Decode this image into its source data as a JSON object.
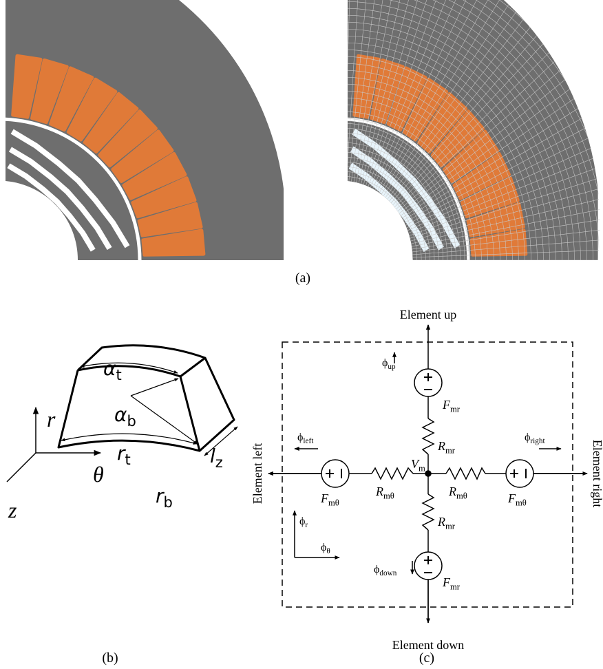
{
  "panel_a": {
    "caption": "(a)"
  },
  "panel_b": {
    "caption": "(b)",
    "alpha_t": {
      "symbol": "α",
      "sub": "t"
    },
    "alpha_b": {
      "symbol": "α",
      "sub": "b"
    },
    "r_t": {
      "symbol": "r",
      "sub": "t"
    },
    "r_b": {
      "symbol": "r",
      "sub": "b"
    },
    "l_z": {
      "symbol": "l",
      "sub": "z"
    },
    "axis_r": "r",
    "axis_theta": "θ",
    "axis_z": "z"
  },
  "panel_c": {
    "caption": "(c)",
    "element_up": "Element up",
    "element_down": "Element down",
    "element_left": "Element left",
    "element_right": "Element right",
    "flux_up": {
      "symbol": "ϕ",
      "sub": "up"
    },
    "flux_down": {
      "symbol": "ϕ",
      "sub": "down"
    },
    "flux_left": {
      "symbol": "ϕ",
      "sub": "left"
    },
    "flux_right": {
      "symbol": "ϕ",
      "sub": "right"
    },
    "flux_r": {
      "symbol": "ϕ",
      "sub": "r"
    },
    "flux_theta": {
      "symbol": "ϕ",
      "sub": "θ"
    },
    "node_potential": {
      "symbol": "V",
      "sub": "m"
    },
    "labels": [
      {
        "symbol": "F",
        "sub": "mr"
      },
      {
        "symbol": "R",
        "sub": "mr"
      },
      {
        "symbol": "R",
        "sub": "mθ"
      },
      {
        "symbol": "R",
        "sub": "mθ"
      },
      {
        "symbol": "F",
        "sub": "mθ"
      },
      {
        "symbol": "F",
        "sub": "mθ"
      },
      {
        "symbol": "R",
        "sub": "mr"
      },
      {
        "symbol": "F",
        "sub": "mr"
      }
    ]
  }
}
